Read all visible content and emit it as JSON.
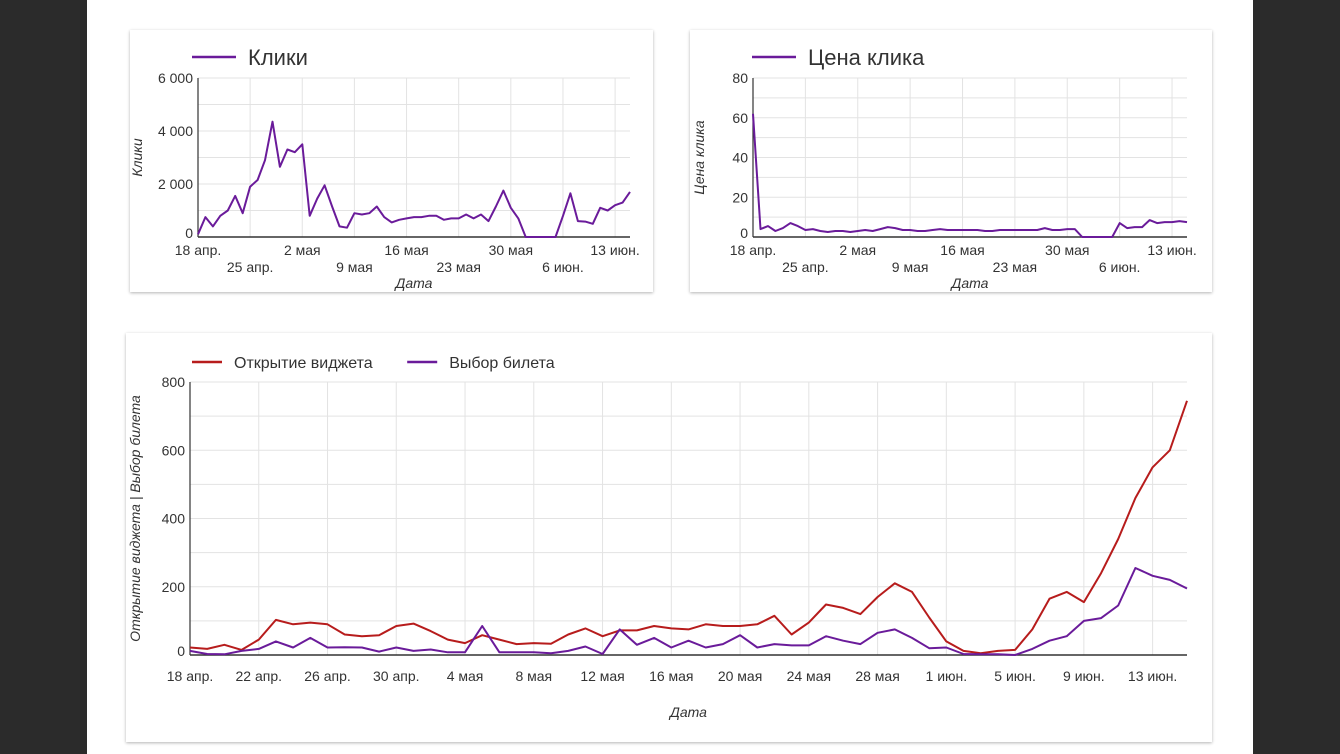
{
  "colors": {
    "purple": "#6a1b9a",
    "red": "#b71c1c",
    "grid": "#e0e0e0"
  },
  "chart_data": [
    {
      "type": "line",
      "title": "Клики",
      "xlabel": "Дата",
      "ylabel": "Клики",
      "ylim": [
        0,
        6000
      ],
      "y_ticks": [
        {
          "v": 0,
          "label": "0"
        },
        {
          "v": 2000,
          "label": "2 000"
        },
        {
          "v": 4000,
          "label": "4 000"
        },
        {
          "v": 6000,
          "label": "6 000"
        }
      ],
      "y_minor_step": 1000,
      "x_ticks": [
        {
          "day": 0,
          "label": "18 апр."
        },
        {
          "day": 7,
          "label": "25 апр."
        },
        {
          "day": 14,
          "label": "2 мая"
        },
        {
          "day": 21,
          "label": "9 мая"
        },
        {
          "day": 28,
          "label": "16 мая"
        },
        {
          "day": 35,
          "label": "23 мая"
        },
        {
          "day": 42,
          "label": "30 мая"
        },
        {
          "day": 49,
          "label": "6 июн."
        },
        {
          "day": 56,
          "label": "13 июн."
        }
      ],
      "x_label_rows": 2,
      "legend": "top-left",
      "series": [
        {
          "name": "Клики",
          "color": "#6a1b9a",
          "values": [
            100,
            750,
            400,
            800,
            1000,
            1550,
            900,
            1900,
            2150,
            2900,
            4350,
            2650,
            3300,
            3200,
            3500,
            800,
            1450,
            1950,
            1150,
            400,
            350,
            900,
            850,
            900,
            1150,
            750,
            550,
            650,
            700,
            750,
            750,
            800,
            800,
            650,
            700,
            700,
            850,
            700,
            850,
            600,
            1150,
            1750,
            1100,
            700,
            0,
            0,
            0,
            0,
            0,
            800,
            1650,
            600,
            580,
            500,
            1100,
            1000,
            1200,
            1300,
            1700
          ]
        }
      ]
    },
    {
      "type": "line",
      "title": "Цена клика",
      "xlabel": "Дата",
      "ylabel": "Цена клика",
      "ylim": [
        0,
        80
      ],
      "y_ticks": [
        {
          "v": 0,
          "label": "0"
        },
        {
          "v": 20,
          "label": "20"
        },
        {
          "v": 40,
          "label": "40"
        },
        {
          "v": 60,
          "label": "60"
        },
        {
          "v": 80,
          "label": "80"
        }
      ],
      "y_minor_step": 10,
      "x_ticks": [
        {
          "day": 0,
          "label": "18 апр."
        },
        {
          "day": 7,
          "label": "25 апр."
        },
        {
          "day": 14,
          "label": "2 мая"
        },
        {
          "day": 21,
          "label": "9 мая"
        },
        {
          "day": 28,
          "label": "16 мая"
        },
        {
          "day": 35,
          "label": "23 мая"
        },
        {
          "day": 42,
          "label": "30 мая"
        },
        {
          "day": 49,
          "label": "6 июн."
        },
        {
          "day": 56,
          "label": "13 июн."
        }
      ],
      "x_label_rows": 2,
      "legend": "top-left",
      "series": [
        {
          "name": "Цена клика",
          "color": "#6a1b9a",
          "values": [
            62,
            4,
            5.5,
            3,
            4.5,
            7,
            5.5,
            3.5,
            4,
            3,
            2.5,
            3,
            3,
            2.5,
            3,
            3.5,
            3,
            4,
            5,
            4.5,
            3.5,
            3.5,
            3,
            3,
            3.5,
            4,
            3.5,
            3.5,
            3.5,
            3.5,
            3.5,
            3,
            3,
            3.5,
            3.5,
            3.5,
            3.5,
            3.5,
            3.5,
            4.5,
            3.5,
            3.5,
            4,
            4,
            0,
            0,
            0,
            0,
            0,
            7,
            4.5,
            5,
            5,
            8.5,
            7,
            7.5,
            7.5,
            8,
            7.5
          ]
        }
      ]
    },
    {
      "type": "line",
      "title": "",
      "xlabel": "Дата",
      "ylabel": "Открытие виджета | Выбор билета",
      "ylim": [
        0,
        800
      ],
      "y_ticks": [
        {
          "v": 0,
          "label": "0"
        },
        {
          "v": 200,
          "label": "200"
        },
        {
          "v": 400,
          "label": "400"
        },
        {
          "v": 600,
          "label": "600"
        },
        {
          "v": 800,
          "label": "800"
        }
      ],
      "y_minor_step": 100,
      "x_ticks": [
        {
          "day": 0,
          "label": "18 апр."
        },
        {
          "day": 4,
          "label": "22 апр."
        },
        {
          "day": 8,
          "label": "26 апр."
        },
        {
          "day": 12,
          "label": "30 апр."
        },
        {
          "day": 16,
          "label": "4 мая"
        },
        {
          "day": 20,
          "label": "8 мая"
        },
        {
          "day": 24,
          "label": "12 мая"
        },
        {
          "day": 28,
          "label": "16 мая"
        },
        {
          "day": 32,
          "label": "20 мая"
        },
        {
          "day": 36,
          "label": "24 мая"
        },
        {
          "day": 40,
          "label": "28 мая"
        },
        {
          "day": 44,
          "label": "1 июн."
        },
        {
          "day": 48,
          "label": "5 июн."
        },
        {
          "day": 52,
          "label": "9 июн."
        },
        {
          "day": 56,
          "label": "13 июн."
        }
      ],
      "x_label_rows": 1,
      "legend": "top-left",
      "series": [
        {
          "name": "Открытие виджета",
          "color": "#b71c1c",
          "values": [
            22,
            18,
            30,
            15,
            45,
            103,
            90,
            95,
            90,
            60,
            55,
            58,
            85,
            92,
            70,
            45,
            35,
            58,
            45,
            32,
            35,
            33,
            60,
            78,
            55,
            72,
            72,
            85,
            78,
            75,
            90,
            85,
            85,
            90,
            115,
            60,
            95,
            148,
            138,
            120,
            170,
            210,
            185,
            110,
            40,
            12,
            5,
            12,
            15,
            75,
            165,
            185,
            155,
            240,
            340,
            460,
            550,
            600,
            745
          ]
        },
        {
          "name": "Выбор билета",
          "color": "#6a1b9a",
          "values": [
            12,
            3,
            2,
            12,
            18,
            40,
            22,
            50,
            22,
            23,
            22,
            10,
            22,
            12,
            16,
            8,
            8,
            85,
            8,
            8,
            8,
            5,
            12,
            25,
            3,
            75,
            30,
            50,
            22,
            42,
            22,
            32,
            58,
            22,
            32,
            28,
            28,
            55,
            42,
            32,
            65,
            75,
            50,
            20,
            22,
            3,
            2,
            2,
            0,
            18,
            42,
            55,
            100,
            108,
            145,
            255,
            232,
            220,
            195
          ]
        }
      ]
    }
  ]
}
